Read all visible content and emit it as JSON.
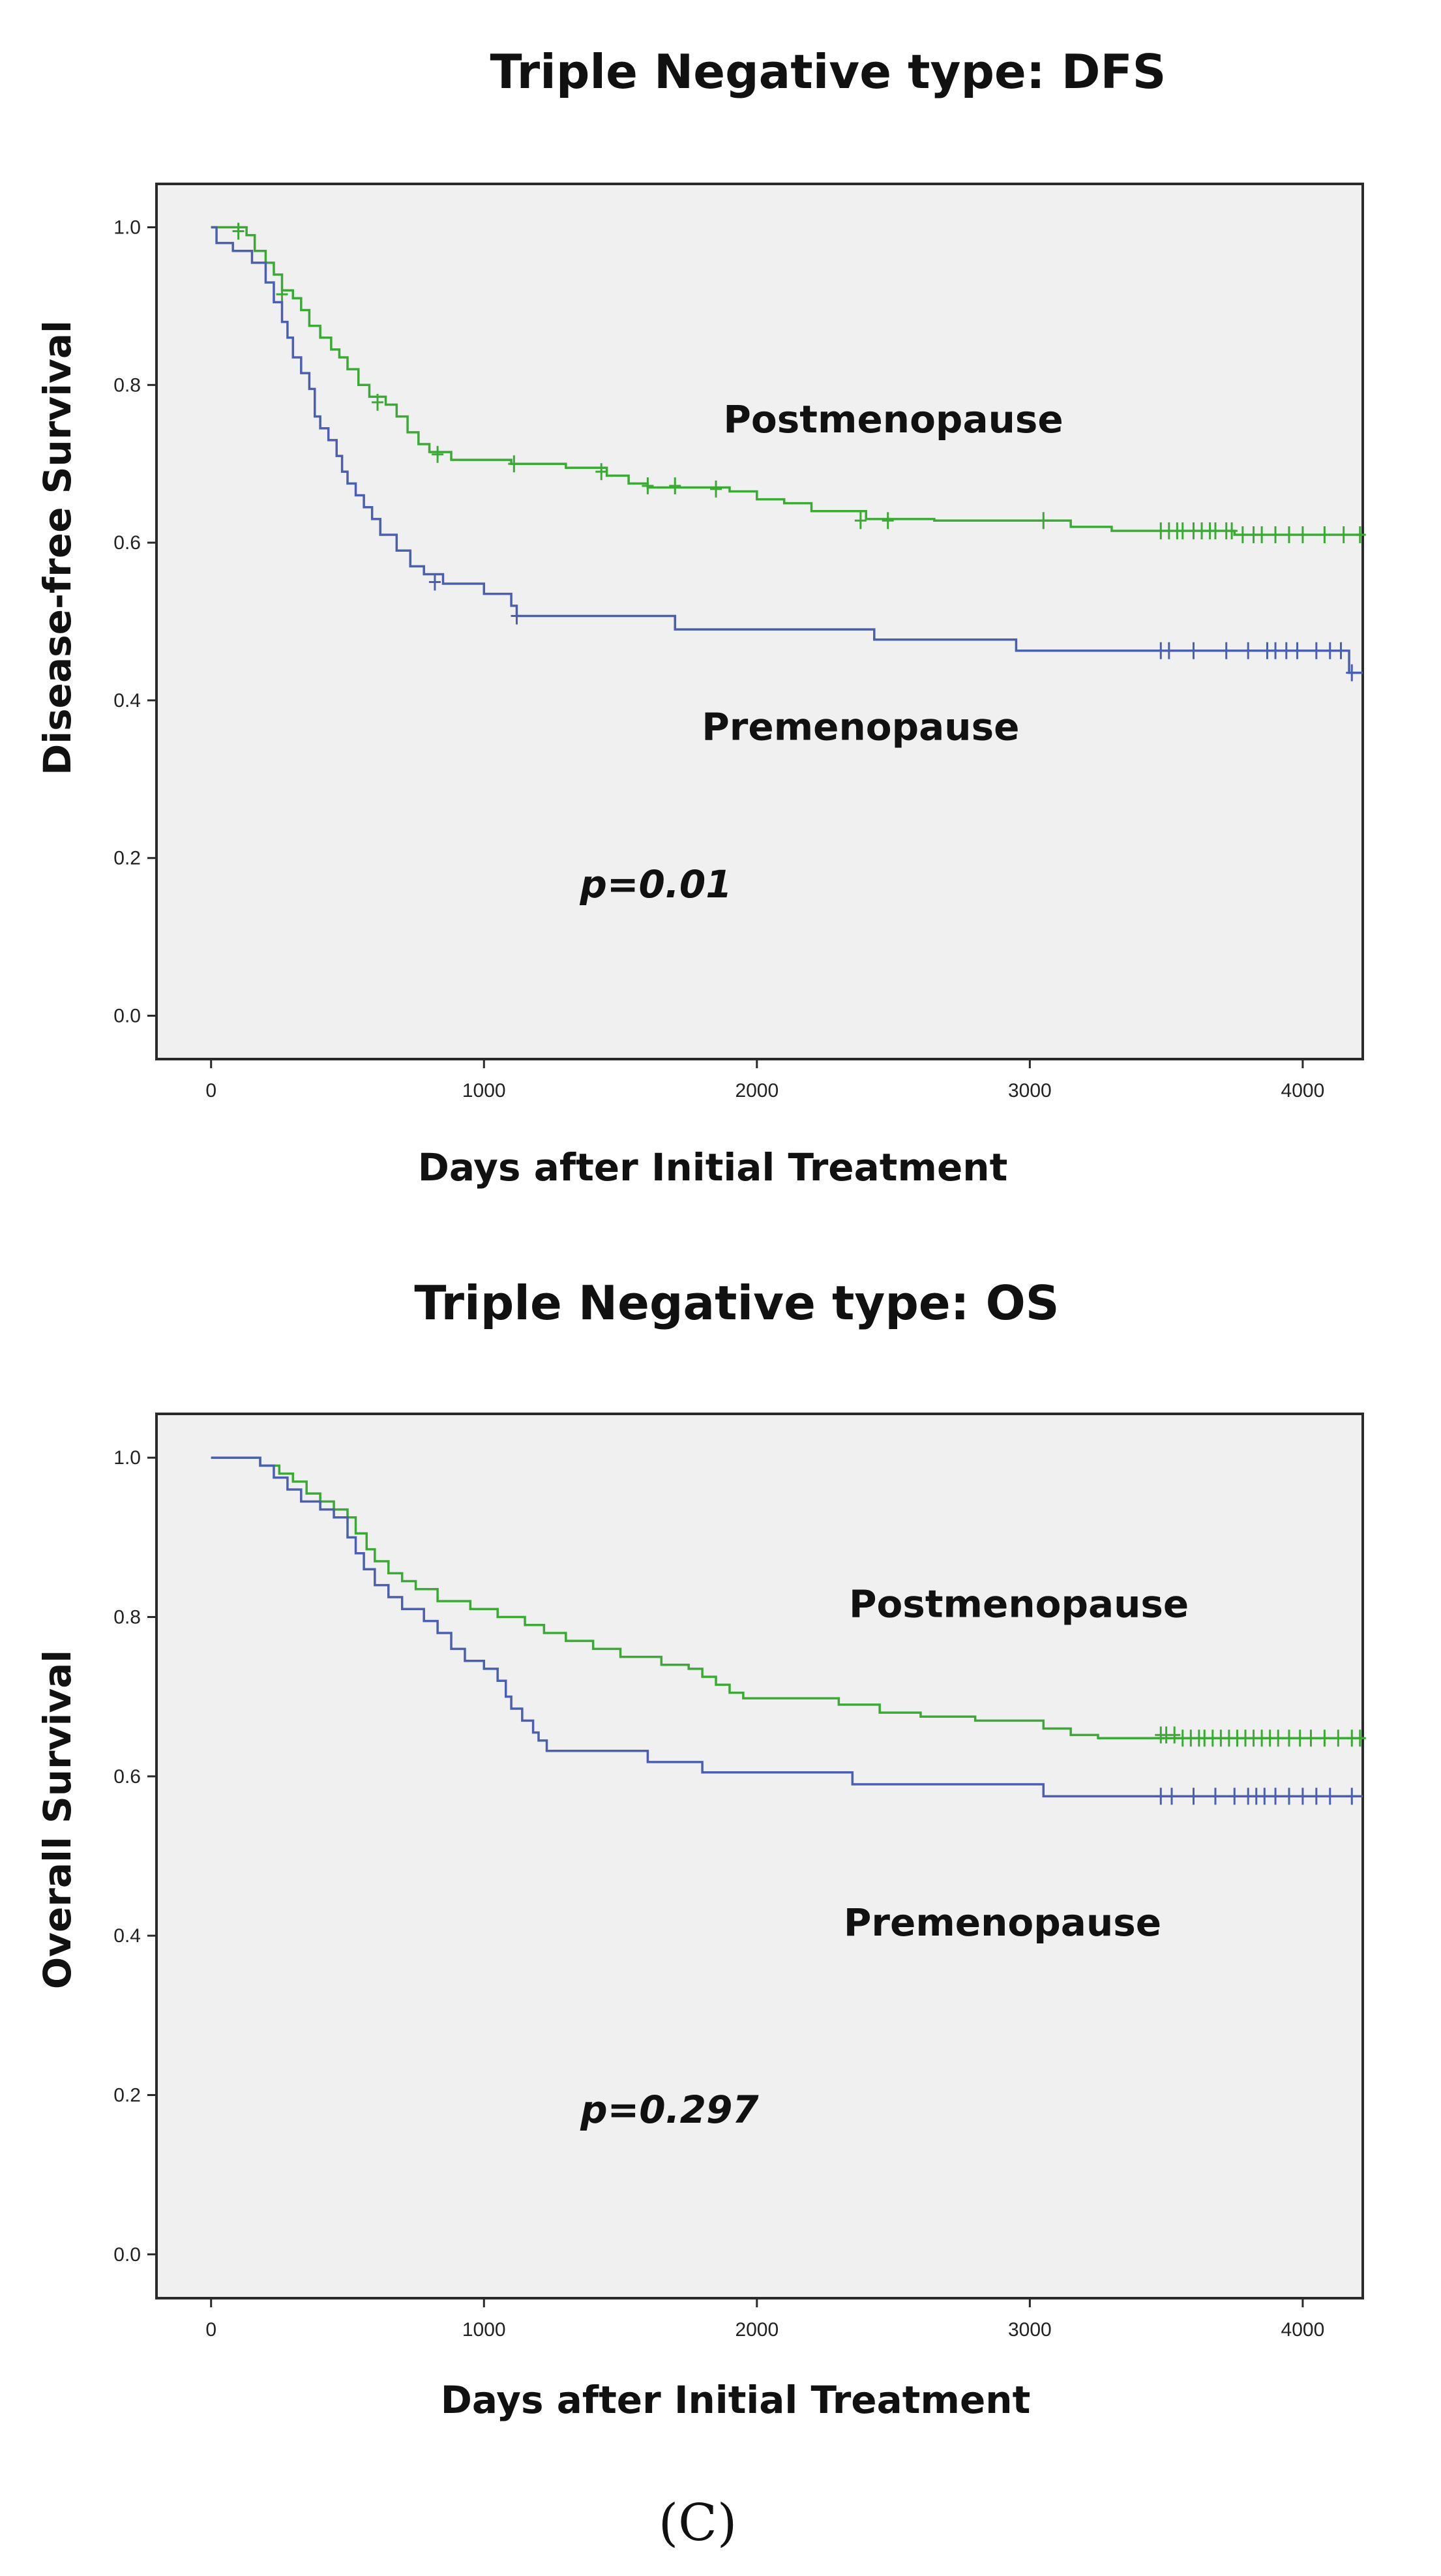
{
  "panel_label": "(C)",
  "colors": {
    "postmenopause": "#3aaa35",
    "premenopause": "#4a5fb0",
    "plot_bg": "#f0f0f0"
  },
  "chart_data": [
    {
      "type": "line",
      "subtype": "kaplan-meier",
      "title": "Triple Negative type: DFS",
      "xlabel": "Days after Initial Treatment",
      "ylabel": "Disease-free Survival",
      "xlim": [
        -200,
        4220
      ],
      "ylim": [
        -0.055,
        1.055
      ],
      "xticks": [
        0,
        1000,
        2000,
        3000,
        4000
      ],
      "xtick_labels": [
        "0",
        "1000",
        "2000",
        "3000",
        "4000"
      ],
      "yticks": [
        0.0,
        0.2,
        0.4,
        0.6,
        0.8,
        1.0
      ],
      "ytick_labels": [
        "0.0",
        "0.2",
        "0.4",
        "0.6",
        "0.8",
        "1.0"
      ],
      "annotations": [
        {
          "text": "Postmenopause",
          "x": 2500,
          "y": 0.74,
          "style": "label"
        },
        {
          "text": "Premenopause",
          "x": 2380,
          "y": 0.35,
          "style": "label"
        },
        {
          "text": "p=0.01",
          "x": 1630,
          "y": 0.15,
          "style": "pvalue"
        }
      ],
      "series": [
        {
          "name": "Postmenopause",
          "color_key": "postmenopause",
          "steps": [
            [
              0,
              1.0
            ],
            [
              130,
              0.99
            ],
            [
              160,
              0.97
            ],
            [
              200,
              0.955
            ],
            [
              230,
              0.94
            ],
            [
              260,
              0.92
            ],
            [
              300,
              0.91
            ],
            [
              330,
              0.895
            ],
            [
              360,
              0.875
            ],
            [
              400,
              0.86
            ],
            [
              440,
              0.845
            ],
            [
              470,
              0.835
            ],
            [
              500,
              0.82
            ],
            [
              540,
              0.8
            ],
            [
              580,
              0.785
            ],
            [
              640,
              0.775
            ],
            [
              680,
              0.76
            ],
            [
              720,
              0.74
            ],
            [
              760,
              0.725
            ],
            [
              800,
              0.715
            ],
            [
              880,
              0.705
            ],
            [
              1100,
              0.7
            ],
            [
              1300,
              0.695
            ],
            [
              1450,
              0.685
            ],
            [
              1530,
              0.675
            ],
            [
              1600,
              0.67
            ],
            [
              1900,
              0.665
            ],
            [
              2000,
              0.655
            ],
            [
              2100,
              0.65
            ],
            [
              2200,
              0.64
            ],
            [
              2400,
              0.63
            ],
            [
              2650,
              0.628
            ],
            [
              3150,
              0.62
            ],
            [
              3300,
              0.615
            ],
            [
              3750,
              0.61
            ],
            [
              4220,
              0.61
            ]
          ],
          "censors": [
            [
              100,
              0.995
            ],
            [
              260,
              0.915
            ],
            [
              610,
              0.778
            ],
            [
              830,
              0.712
            ],
            [
              1110,
              0.7
            ],
            [
              1430,
              0.69
            ],
            [
              1600,
              0.672
            ],
            [
              1700,
              0.672
            ],
            [
              1850,
              0.668
            ],
            [
              2380,
              0.628
            ],
            [
              2480,
              0.628
            ],
            [
              3050,
              0.628
            ],
            [
              3480,
              0.615
            ],
            [
              3510,
              0.615
            ],
            [
              3540,
              0.615
            ],
            [
              3560,
              0.615
            ],
            [
              3600,
              0.615
            ],
            [
              3630,
              0.615
            ],
            [
              3660,
              0.615
            ],
            [
              3680,
              0.615
            ],
            [
              3720,
              0.615
            ],
            [
              3740,
              0.615
            ],
            [
              3780,
              0.61
            ],
            [
              3820,
              0.61
            ],
            [
              3850,
              0.61
            ],
            [
              3900,
              0.61
            ],
            [
              3950,
              0.61
            ],
            [
              4000,
              0.61
            ],
            [
              4080,
              0.61
            ],
            [
              4150,
              0.61
            ],
            [
              4210,
              0.61
            ]
          ]
        },
        {
          "name": "Premenopause",
          "color_key": "premenopause",
          "steps": [
            [
              0,
              1.0
            ],
            [
              20,
              0.98
            ],
            [
              80,
              0.97
            ],
            [
              150,
              0.955
            ],
            [
              200,
              0.93
            ],
            [
              230,
              0.905
            ],
            [
              260,
              0.88
            ],
            [
              280,
              0.86
            ],
            [
              300,
              0.835
            ],
            [
              330,
              0.815
            ],
            [
              360,
              0.795
            ],
            [
              380,
              0.76
            ],
            [
              400,
              0.745
            ],
            [
              430,
              0.73
            ],
            [
              460,
              0.71
            ],
            [
              480,
              0.69
            ],
            [
              500,
              0.675
            ],
            [
              530,
              0.66
            ],
            [
              560,
              0.645
            ],
            [
              590,
              0.63
            ],
            [
              620,
              0.61
            ],
            [
              680,
              0.59
            ],
            [
              730,
              0.57
            ],
            [
              780,
              0.56
            ],
            [
              850,
              0.548
            ],
            [
              1000,
              0.535
            ],
            [
              1100,
              0.52
            ],
            [
              1120,
              0.507
            ],
            [
              1700,
              0.49
            ],
            [
              2430,
              0.477
            ],
            [
              2950,
              0.463
            ],
            [
              4170,
              0.435
            ],
            [
              4220,
              0.435
            ]
          ],
          "censors": [
            [
              820,
              0.55
            ],
            [
              1120,
              0.507
            ],
            [
              3480,
              0.463
            ],
            [
              3510,
              0.463
            ],
            [
              3600,
              0.463
            ],
            [
              3720,
              0.463
            ],
            [
              3800,
              0.463
            ],
            [
              3870,
              0.463
            ],
            [
              3900,
              0.463
            ],
            [
              3940,
              0.463
            ],
            [
              3980,
              0.463
            ],
            [
              4050,
              0.463
            ],
            [
              4100,
              0.463
            ],
            [
              4140,
              0.463
            ],
            [
              4180,
              0.435
            ]
          ]
        }
      ]
    },
    {
      "type": "line",
      "subtype": "kaplan-meier",
      "title": "Triple Negative type: OS",
      "xlabel": "Days after Initial Treatment",
      "ylabel": "Overall Survival",
      "xlim": [
        -200,
        4220
      ],
      "ylim": [
        -0.055,
        1.055
      ],
      "xticks": [
        0,
        1000,
        2000,
        3000,
        4000
      ],
      "xtick_labels": [
        "0",
        "1000",
        "2000",
        "3000",
        "4000"
      ],
      "yticks": [
        0.0,
        0.2,
        0.4,
        0.6,
        0.8,
        1.0
      ],
      "ytick_labels": [
        "0.0",
        "0.2",
        "0.4",
        "0.6",
        "0.8",
        "1.0"
      ],
      "annotations": [
        {
          "text": "Postmenopause",
          "x": 2960,
          "y": 0.8,
          "style": "label"
        },
        {
          "text": "Premenopause",
          "x": 2900,
          "y": 0.4,
          "style": "label"
        },
        {
          "text": "p=0.297",
          "x": 1680,
          "y": 0.165,
          "style": "pvalue"
        }
      ],
      "series": [
        {
          "name": "Postmenopause",
          "color_key": "postmenopause",
          "steps": [
            [
              0,
              1.0
            ],
            [
              150,
              1.0
            ],
            [
              180,
              0.99
            ],
            [
              250,
              0.98
            ],
            [
              300,
              0.97
            ],
            [
              350,
              0.955
            ],
            [
              400,
              0.945
            ],
            [
              450,
              0.935
            ],
            [
              500,
              0.925
            ],
            [
              530,
              0.905
            ],
            [
              570,
              0.885
            ],
            [
              600,
              0.87
            ],
            [
              650,
              0.855
            ],
            [
              700,
              0.845
            ],
            [
              750,
              0.835
            ],
            [
              830,
              0.82
            ],
            [
              950,
              0.81
            ],
            [
              1050,
              0.8
            ],
            [
              1150,
              0.79
            ],
            [
              1220,
              0.78
            ],
            [
              1300,
              0.77
            ],
            [
              1400,
              0.76
            ],
            [
              1500,
              0.75
            ],
            [
              1650,
              0.74
            ],
            [
              1750,
              0.735
            ],
            [
              1800,
              0.725
            ],
            [
              1850,
              0.715
            ],
            [
              1900,
              0.705
            ],
            [
              1950,
              0.698
            ],
            [
              2300,
              0.69
            ],
            [
              2450,
              0.68
            ],
            [
              2600,
              0.675
            ],
            [
              2800,
              0.67
            ],
            [
              3050,
              0.66
            ],
            [
              3150,
              0.652
            ],
            [
              3250,
              0.648
            ],
            [
              4220,
              0.648
            ]
          ],
          "censors": [
            [
              3480,
              0.652
            ],
            [
              3500,
              0.652
            ],
            [
              3530,
              0.652
            ],
            [
              3560,
              0.648
            ],
            [
              3590,
              0.648
            ],
            [
              3620,
              0.648
            ],
            [
              3640,
              0.648
            ],
            [
              3670,
              0.648
            ],
            [
              3700,
              0.648
            ],
            [
              3730,
              0.648
            ],
            [
              3760,
              0.648
            ],
            [
              3790,
              0.648
            ],
            [
              3820,
              0.648
            ],
            [
              3850,
              0.648
            ],
            [
              3880,
              0.648
            ],
            [
              3910,
              0.648
            ],
            [
              3950,
              0.648
            ],
            [
              3990,
              0.648
            ],
            [
              4030,
              0.648
            ],
            [
              4080,
              0.648
            ],
            [
              4130,
              0.648
            ],
            [
              4180,
              0.648
            ],
            [
              4210,
              0.648
            ]
          ]
        },
        {
          "name": "Premenopause",
          "color_key": "premenopause",
          "steps": [
            [
              0,
              1.0
            ],
            [
              180,
              0.99
            ],
            [
              230,
              0.975
            ],
            [
              280,
              0.96
            ],
            [
              330,
              0.945
            ],
            [
              400,
              0.935
            ],
            [
              450,
              0.925
            ],
            [
              500,
              0.9
            ],
            [
              530,
              0.88
            ],
            [
              560,
              0.86
            ],
            [
              600,
              0.84
            ],
            [
              650,
              0.825
            ],
            [
              700,
              0.81
            ],
            [
              780,
              0.795
            ],
            [
              830,
              0.78
            ],
            [
              880,
              0.76
            ],
            [
              930,
              0.745
            ],
            [
              1000,
              0.735
            ],
            [
              1050,
              0.72
            ],
            [
              1080,
              0.7
            ],
            [
              1100,
              0.685
            ],
            [
              1140,
              0.67
            ],
            [
              1180,
              0.655
            ],
            [
              1200,
              0.645
            ],
            [
              1230,
              0.632
            ],
            [
              1600,
              0.618
            ],
            [
              1800,
              0.605
            ],
            [
              2350,
              0.59
            ],
            [
              3050,
              0.575
            ],
            [
              4220,
              0.575
            ]
          ],
          "censors": [
            [
              3480,
              0.575
            ],
            [
              3520,
              0.575
            ],
            [
              3600,
              0.575
            ],
            [
              3680,
              0.575
            ],
            [
              3750,
              0.575
            ],
            [
              3800,
              0.575
            ],
            [
              3830,
              0.575
            ],
            [
              3860,
              0.575
            ],
            [
              3900,
              0.575
            ],
            [
              3950,
              0.575
            ],
            [
              4000,
              0.575
            ],
            [
              4050,
              0.575
            ],
            [
              4100,
              0.575
            ],
            [
              4180,
              0.575
            ]
          ]
        }
      ]
    }
  ]
}
